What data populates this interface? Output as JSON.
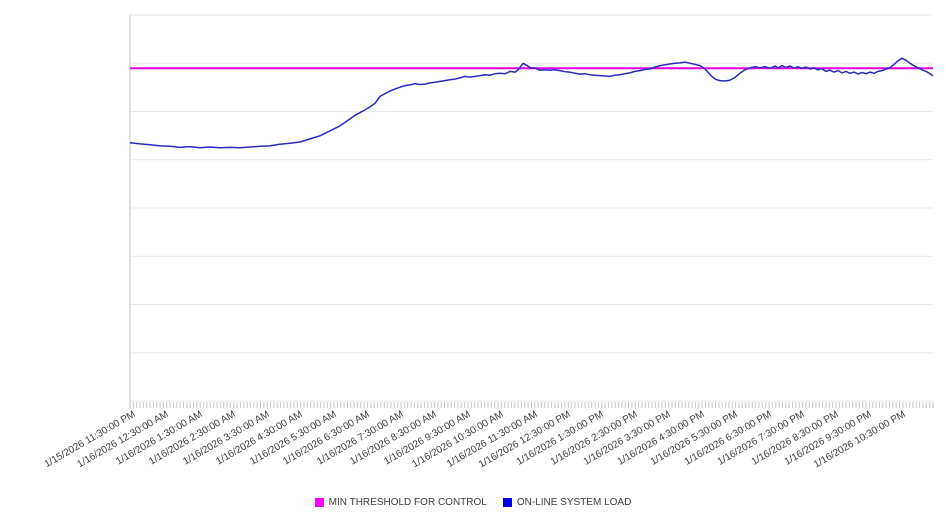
{
  "legend": {
    "items": [
      {
        "label": "MIN THRESHOLD FOR CONTROL",
        "color": "#ff00ff"
      },
      {
        "label": "ON-LINE SYSTEM LOAD",
        "color": "#0000ee"
      }
    ]
  },
  "chart_data": {
    "type": "line",
    "title": "",
    "xlabel": "",
    "ylabel": "",
    "legend_position": "bottom",
    "grid": true,
    "x_range_hours": [
      0,
      24
    ],
    "minor_ticks_per_hour": 10,
    "x_tick_labels": [
      "1/15/2026 11:30:00 PM",
      "1/16/2026 12:30:00 AM",
      "1/16/2026 1:30:00 AM",
      "1/16/2026 2:30:00 AM",
      "1/16/2026 3:30:00 AM",
      "1/16/2026 4:30:00 AM",
      "1/16/2026 5:30:00 AM",
      "1/16/2026 6:30:00 AM",
      "1/16/2026 7:30:00 AM",
      "1/16/2026 8:30:00 AM",
      "1/16/2026 9:30:00 AM",
      "1/16/2026 10:30:00 AM",
      "1/16/2026 11:30:00 AM",
      "1/16/2026 12:30:00 PM",
      "1/16/2026 1:30:00 PM",
      "1/16/2026 2:30:00 PM",
      "1/16/2026 3:30:00 PM",
      "1/16/2026 4:30:00 PM",
      "1/16/2026 5:30:00 PM",
      "1/16/2026 6:30:00 PM",
      "1/16/2026 7:30:00 PM",
      "1/16/2026 8:30:00 PM",
      "1/16/2026 9:30:00 PM",
      "1/16/2026 10:30:00 PM"
    ],
    "y_axis": {
      "range": [
        0,
        100
      ],
      "labels_visible": false,
      "gridline_count": 9
    },
    "colors": {
      "grid": "#e9e9e9",
      "axis": "#c4c4c4",
      "tick": "#c9c9c9",
      "threshold_line": "#e600e6",
      "load_line": "#2a2ac0"
    },
    "series": [
      {
        "name": "MIN THRESHOLD FOR CONTROL",
        "style": "horizontal-threshold",
        "value": 86.2
      },
      {
        "name": "ON-LINE SYSTEM LOAD",
        "style": "line",
        "points": [
          [
            0,
            66.9
          ],
          [
            0.3,
            66.6
          ],
          [
            0.6,
            66.4
          ],
          [
            0.9,
            66.1
          ],
          [
            1.2,
            66.0
          ],
          [
            1.49,
            65.7
          ],
          [
            1.79,
            65.9
          ],
          [
            2.09,
            65.6
          ],
          [
            2.39,
            65.8
          ],
          [
            2.69,
            65.6
          ],
          [
            2.99,
            65.7
          ],
          [
            3.29,
            65.6
          ],
          [
            3.59,
            65.8
          ],
          [
            3.89,
            66.0
          ],
          [
            4.18,
            66.1
          ],
          [
            4.48,
            66.5
          ],
          [
            4.78,
            66.8
          ],
          [
            5.08,
            67.1
          ],
          [
            5.38,
            67.9
          ],
          [
            5.68,
            68.7
          ],
          [
            5.98,
            70.0
          ],
          [
            6.28,
            71.3
          ],
          [
            6.58,
            73.1
          ],
          [
            6.72,
            74.0
          ],
          [
            6.87,
            74.7
          ],
          [
            7.02,
            75.4
          ],
          [
            7.17,
            76.2
          ],
          [
            7.32,
            77.1
          ],
          [
            7.47,
            78.9
          ],
          [
            7.62,
            79.6
          ],
          [
            7.77,
            80.3
          ],
          [
            7.92,
            80.8
          ],
          [
            8.07,
            81.3
          ],
          [
            8.22,
            81.7
          ],
          [
            8.37,
            81.9
          ],
          [
            8.52,
            82.2
          ],
          [
            8.67,
            82.0
          ],
          [
            8.82,
            82.1
          ],
          [
            8.97,
            82.4
          ],
          [
            9.12,
            82.6
          ],
          [
            9.27,
            82.8
          ],
          [
            9.41,
            83.0
          ],
          [
            9.56,
            83.2
          ],
          [
            9.71,
            83.4
          ],
          [
            9.86,
            83.7
          ],
          [
            10.01,
            84.1
          ],
          [
            10.16,
            83.9
          ],
          [
            10.31,
            84.1
          ],
          [
            10.46,
            84.3
          ],
          [
            10.61,
            84.5
          ],
          [
            10.76,
            84.4
          ],
          [
            10.91,
            84.8
          ],
          [
            11.06,
            84.9
          ],
          [
            11.21,
            84.8
          ],
          [
            11.36,
            85.4
          ],
          [
            11.51,
            85.2
          ],
          [
            11.6,
            85.8
          ],
          [
            11.75,
            87.5
          ],
          [
            11.9,
            86.7
          ],
          [
            11.99,
            86.2
          ],
          [
            12.1,
            86.3
          ],
          [
            12.25,
            85.7
          ],
          [
            12.4,
            85.8
          ],
          [
            12.55,
            85.7
          ],
          [
            12.7,
            85.8
          ],
          [
            12.85,
            85.6
          ],
          [
            13.0,
            85.3
          ],
          [
            13.15,
            85.2
          ],
          [
            13.3,
            84.9
          ],
          [
            13.45,
            84.7
          ],
          [
            13.6,
            84.8
          ],
          [
            13.75,
            84.5
          ],
          [
            13.9,
            84.4
          ],
          [
            14.05,
            84.3
          ],
          [
            14.2,
            84.2
          ],
          [
            14.35,
            84.1
          ],
          [
            14.49,
            84.4
          ],
          [
            14.64,
            84.5
          ],
          [
            14.79,
            84.8
          ],
          [
            14.94,
            85.0
          ],
          [
            15.09,
            85.4
          ],
          [
            15.24,
            85.6
          ],
          [
            15.39,
            85.9
          ],
          [
            15.54,
            86.0
          ],
          [
            15.69,
            86.5
          ],
          [
            15.84,
            86.9
          ],
          [
            15.99,
            87.1
          ],
          [
            16.14,
            87.3
          ],
          [
            16.29,
            87.5
          ],
          [
            16.44,
            87.6
          ],
          [
            16.59,
            87.8
          ],
          [
            16.74,
            87.5
          ],
          [
            16.89,
            87.2
          ],
          [
            17.04,
            86.9
          ],
          [
            17.19,
            86.0
          ],
          [
            17.28,
            85.1
          ],
          [
            17.4,
            84.0
          ],
          [
            17.51,
            83.3
          ],
          [
            17.63,
            83.0
          ],
          [
            17.78,
            82.9
          ],
          [
            17.93,
            83.1
          ],
          [
            18.08,
            83.8
          ],
          [
            18.23,
            84.9
          ],
          [
            18.38,
            85.8
          ],
          [
            18.53,
            86.3
          ],
          [
            18.68,
            86.6
          ],
          [
            18.83,
            86.3
          ],
          [
            18.98,
            86.6
          ],
          [
            19.13,
            86.2
          ],
          [
            19.28,
            86.8
          ],
          [
            19.37,
            86.3
          ],
          [
            19.49,
            86.9
          ],
          [
            19.61,
            86.4
          ],
          [
            19.73,
            86.8
          ],
          [
            19.85,
            86.2
          ],
          [
            19.96,
            86.6
          ],
          [
            20.08,
            86.2
          ],
          [
            20.2,
            86.5
          ],
          [
            20.32,
            86.0
          ],
          [
            20.44,
            86.3
          ],
          [
            20.56,
            85.8
          ],
          [
            20.68,
            86.1
          ],
          [
            20.8,
            85.4
          ],
          [
            20.92,
            85.7
          ],
          [
            21.04,
            85.2
          ],
          [
            21.16,
            85.6
          ],
          [
            21.28,
            85.0
          ],
          [
            21.4,
            85.4
          ],
          [
            21.52,
            84.9
          ],
          [
            21.64,
            85.2
          ],
          [
            21.76,
            84.7
          ],
          [
            21.88,
            85.1
          ],
          [
            22.0,
            84.8
          ],
          [
            22.12,
            85.2
          ],
          [
            22.24,
            84.9
          ],
          [
            22.36,
            85.4
          ],
          [
            22.48,
            85.6
          ],
          [
            22.6,
            86.0
          ],
          [
            22.71,
            86.3
          ],
          [
            22.83,
            87.2
          ],
          [
            22.95,
            88.1
          ],
          [
            23.07,
            88.8
          ],
          [
            23.19,
            88.3
          ],
          [
            23.31,
            87.5
          ],
          [
            23.43,
            86.9
          ],
          [
            23.55,
            86.3
          ],
          [
            23.67,
            85.8
          ],
          [
            23.79,
            85.4
          ],
          [
            23.91,
            84.8
          ],
          [
            24.0,
            84.2
          ]
        ]
      }
    ]
  }
}
